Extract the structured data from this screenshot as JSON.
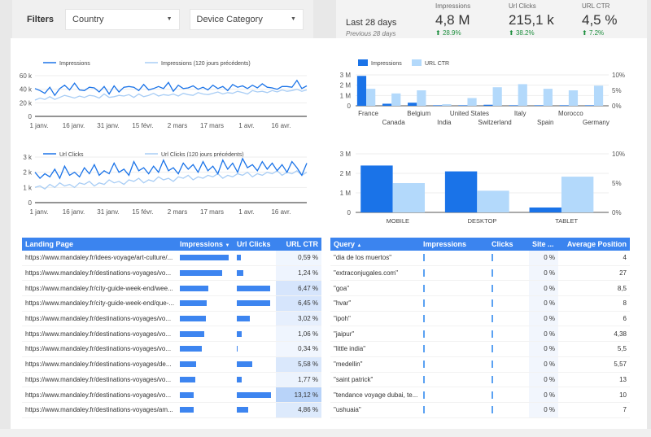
{
  "filters": {
    "label": "Filters",
    "country": "Country",
    "device": "Device Category"
  },
  "kpi": {
    "period": "Last 28 days",
    "previous": "Previous 28 days",
    "metrics": [
      {
        "title": "Impressions",
        "value": "4,8 M",
        "delta": "28.9%"
      },
      {
        "title": "Url Clicks",
        "value": "215,1 k",
        "delta": "38.2%"
      },
      {
        "title": "URL CTR",
        "value": "4,5 %",
        "delta": "7.2%"
      }
    ]
  },
  "line1": {
    "legend": [
      "Impressions",
      "Impressions (120 jours précédents)"
    ],
    "yticks": [
      "60 k",
      "40 k",
      "20 k",
      "0"
    ],
    "xticks": [
      "1 janv.",
      "16 janv.",
      "31 janv.",
      "15 févr.",
      "2 mars",
      "17 mars",
      "1 avr.",
      "16 avr."
    ]
  },
  "line2": {
    "legend": [
      "Url Clicks",
      "Url Clicks (120 jours précédents)"
    ],
    "yticks": [
      "3 k",
      "2 k",
      "1 k",
      "0"
    ],
    "xticks": [
      "1 janv.",
      "16 janv.",
      "31 janv.",
      "15 févr.",
      "2 mars",
      "17 mars",
      "1 avr.",
      "16 avr."
    ]
  },
  "chart_data": [
    {
      "type": "line",
      "title": "",
      "series": [
        {
          "name": "Impressions",
          "values": [
            41,
            38,
            34,
            43,
            31,
            41,
            46,
            39,
            49,
            39,
            38,
            43,
            42,
            36,
            44,
            33,
            45,
            36,
            43,
            44,
            43,
            38,
            47,
            39,
            41,
            44,
            41,
            50,
            37,
            46,
            41,
            42,
            45,
            40,
            43,
            39,
            46,
            41,
            44,
            38,
            47,
            43,
            45,
            41,
            46,
            42,
            48,
            43,
            42,
            40,
            44,
            44,
            43,
            53,
            41,
            45
          ]
        },
        {
          "name": "Impressions (120 jours précédents)",
          "values": [
            24,
            27,
            25,
            29,
            25,
            28,
            31,
            29,
            27,
            30,
            28,
            31,
            30,
            27,
            33,
            28,
            29,
            31,
            30,
            32,
            28,
            33,
            29,
            31,
            34,
            30,
            32,
            31,
            33,
            30,
            34,
            32,
            31,
            35,
            33,
            32,
            34,
            36,
            33,
            35,
            34,
            37,
            35,
            33,
            38,
            36,
            37,
            35,
            38,
            36,
            39,
            37,
            38,
            40,
            37,
            39
          ]
        }
      ],
      "ylim": [
        0,
        60
      ]
    },
    {
      "type": "line",
      "title": "",
      "series": [
        {
          "name": "Url Clicks",
          "values": [
            2.0,
            1.6,
            1.9,
            1.7,
            2.2,
            1.6,
            2.4,
            1.8,
            2.0,
            1.7,
            2.3,
            1.9,
            2.5,
            1.8,
            2.1,
            1.9,
            2.6,
            2.0,
            2.2,
            1.8,
            2.7,
            2.1,
            2.3,
            1.9,
            2.4,
            2.0,
            2.8,
            2.1,
            2.3,
            1.9,
            2.6,
            2.2,
            2.5,
            2.0,
            2.7,
            2.1,
            2.4,
            1.9,
            2.8,
            2.2,
            2.6,
            2.0,
            2.9,
            2.3,
            2.5,
            2.1,
            2.7,
            2.2,
            2.6,
            2.1,
            2.5,
            2.0,
            2.7,
            2.3,
            1.8,
            2.6
          ]
        },
        {
          "name": "Url Clicks (120 jours précédents)",
          "values": [
            1.0,
            1.1,
            0.9,
            1.2,
            1.0,
            1.3,
            1.1,
            1.2,
            1.0,
            1.3,
            1.2,
            1.4,
            1.1,
            1.3,
            1.2,
            1.5,
            1.3,
            1.4,
            1.2,
            1.5,
            1.4,
            1.6,
            1.3,
            1.5,
            1.4,
            1.7,
            1.5,
            1.6,
            1.4,
            1.7,
            1.6,
            1.8,
            1.5,
            1.7,
            1.6,
            1.8,
            1.7,
            1.9,
            1.6,
            1.8,
            1.7,
            1.9,
            1.8,
            2.0,
            1.7,
            1.9,
            1.8,
            2.0,
            1.9,
            2.1,
            1.8,
            2.0,
            1.9,
            2.1,
            1.8,
            2.0
          ]
        }
      ],
      "ylim": [
        0,
        3
      ]
    },
    {
      "type": "bar",
      "categories": [
        "France",
        "Canada",
        "Belgium",
        "India",
        "United States",
        "Switzerland",
        "Italy",
        "Spain",
        "Morocco",
        "Germany"
      ],
      "series": [
        {
          "name": "Impressions",
          "values": [
            2.9,
            0.2,
            0.3,
            0.05,
            0.05,
            0.1,
            0.05,
            0.05,
            0.05,
            0.05
          ]
        },
        {
          "name": "URL CTR",
          "values": [
            5.5,
            4,
            5,
            0.5,
            2.5,
            6,
            7,
            5.5,
            5,
            6.5
          ]
        }
      ],
      "yticks_left": [
        "3 M",
        "2 M",
        "1 M",
        "0"
      ],
      "yticks_right": [
        "10%",
        "5%",
        "0%"
      ]
    },
    {
      "type": "bar",
      "categories": [
        "MOBILE",
        "DESKTOP",
        "TABLET"
      ],
      "series": [
        {
          "name": "Impressions",
          "values": [
            2.4,
            2.1,
            0.25
          ]
        },
        {
          "name": "URL CTR",
          "values": [
            5,
            3.7,
            6.1
          ]
        }
      ],
      "yticks_left": [
        "3 M",
        "2 M",
        "1 M",
        "0"
      ],
      "yticks_right": [
        "10%",
        "5%",
        "0%"
      ]
    }
  ],
  "landing": {
    "headers": [
      "Landing Page",
      "Impressions",
      "Url Clicks",
      "URL CTR"
    ],
    "rows": [
      {
        "page": "https://www.mandaley.fr/idees-voyage/art-culture/...",
        "imp": 0.97,
        "clk": 0.12,
        "ctr": "0,59 %",
        "ctrv": 0.05
      },
      {
        "page": "https://www.mandaley.fr/destinations-voyages/vo...",
        "imp": 0.84,
        "clk": 0.18,
        "ctr": "1,24 %",
        "ctrv": 0.09
      },
      {
        "page": "https://www.mandaley.fr/city-guide-week-end/wee...",
        "imp": 0.56,
        "clk": 0.98,
        "ctr": "6,47 %",
        "ctrv": 0.49
      },
      {
        "page": "https://www.mandaley.fr/city-guide-week-end/que-...",
        "imp": 0.54,
        "clk": 0.98,
        "ctr": "6,45 %",
        "ctrv": 0.49
      },
      {
        "page": "https://www.mandaley.fr/destinations-voyages/vo...",
        "imp": 0.51,
        "clk": 0.38,
        "ctr": "3,02 %",
        "ctrv": 0.23
      },
      {
        "page": "https://www.mandaley.fr/destinations-voyages/vo...",
        "imp": 0.49,
        "clk": 0.14,
        "ctr": "1,06 %",
        "ctrv": 0.08
      },
      {
        "page": "https://www.mandaley.fr/destinations-voyages/vo...",
        "imp": 0.44,
        "clk": 0.03,
        "ctr": "0,34 %",
        "ctrv": 0.03
      },
      {
        "page": "https://www.mandaley.fr/destinations-voyages/de...",
        "imp": 0.33,
        "clk": 0.46,
        "ctr": "5,58 %",
        "ctrv": 0.43
      },
      {
        "page": "https://www.mandaley.fr/destinations-voyages/vo...",
        "imp": 0.31,
        "clk": 0.14,
        "ctr": "1,77 %",
        "ctrv": 0.13
      },
      {
        "page": "https://www.mandaley.fr/destinations-voyages/vo...",
        "imp": 0.28,
        "clk": 1.0,
        "ctr": "13,12 %",
        "ctrv": 1.0
      },
      {
        "page": "https://www.mandaley.fr/destinations-voyages/am...",
        "imp": 0.28,
        "clk": 0.33,
        "ctr": "4,86 %",
        "ctrv": 0.37
      }
    ]
  },
  "query": {
    "headers": [
      "Query",
      "Impressions",
      "Clicks",
      "Site ...",
      "Average Position"
    ],
    "rows": [
      {
        "q": "\"dia de los muertos\"",
        "s": "0 %",
        "p": "4"
      },
      {
        "q": "\"extraconjugales.com\"",
        "s": "0 %",
        "p": "27"
      },
      {
        "q": "\"goa\"",
        "s": "0 %",
        "p": "8,5"
      },
      {
        "q": "\"hvar\"",
        "s": "0 %",
        "p": "8"
      },
      {
        "q": "\"ipoh\"",
        "s": "0 %",
        "p": "6"
      },
      {
        "q": "\"jaipur\"",
        "s": "0 %",
        "p": "4,38"
      },
      {
        "q": "\"little india\"",
        "s": "0 %",
        "p": "5,5"
      },
      {
        "q": "\"medellin\"",
        "s": "0 %",
        "p": "5,57"
      },
      {
        "q": "\"saint patrick\"",
        "s": "0 %",
        "p": "13"
      },
      {
        "q": "\"tendance voyage dubai, te...",
        "s": "0 %",
        "p": "10"
      },
      {
        "q": "\"ushuaia\"",
        "s": "0 %",
        "p": "7"
      }
    ]
  }
}
